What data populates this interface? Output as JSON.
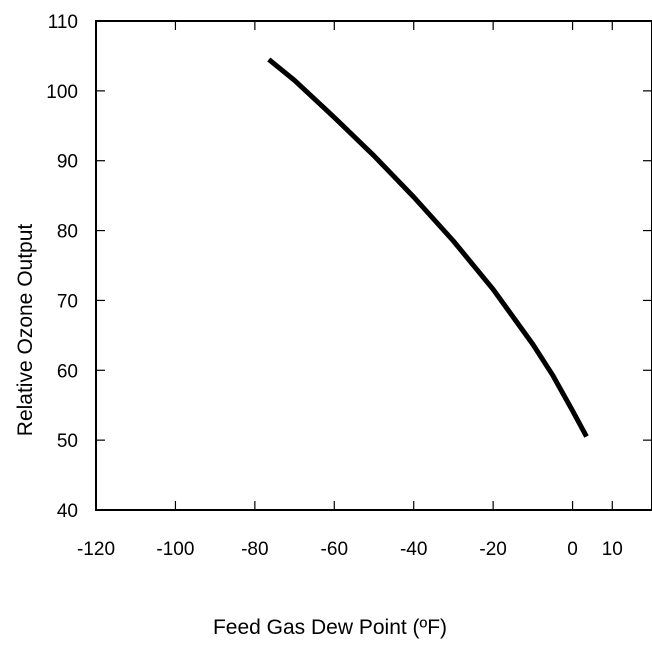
{
  "chart_data": {
    "type": "line",
    "title": "",
    "xlabel": "Feed Gas Dew Point (ºF)",
    "ylabel": "Relative Ozone Output",
    "xlim": [
      -120,
      20
    ],
    "ylim": [
      40,
      110
    ],
    "x_ticks": [
      -120,
      -100,
      -80,
      -60,
      -40,
      -20,
      0,
      10
    ],
    "x_tick_labels": [
      "-120",
      "-100",
      "-80",
      "-60",
      "-40",
      "-20",
      "0",
      "10"
    ],
    "y_ticks": [
      40,
      50,
      60,
      70,
      80,
      90,
      100,
      110
    ],
    "y_tick_labels": [
      "40",
      "50",
      "60",
      "70",
      "80",
      "90",
      "100",
      "110"
    ],
    "grid": false,
    "series": [
      {
        "color": "#000000",
        "x": [
          -76.5,
          -70,
          -60,
          -50,
          -40,
          -30,
          -20,
          -10,
          -5,
          0,
          3.5
        ],
        "y": [
          104.5,
          101.5,
          96.2,
          90.7,
          84.8,
          78.5,
          71.6,
          63.7,
          59.3,
          54.2,
          50.5
        ]
      }
    ]
  }
}
